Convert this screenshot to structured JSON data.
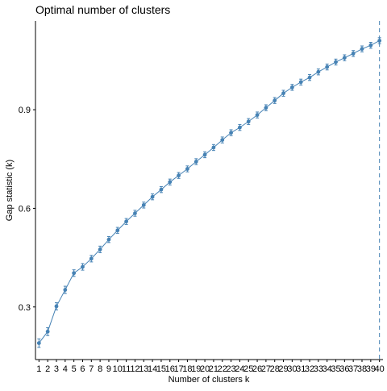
{
  "chart_data": {
    "type": "line",
    "title": "Optimal number of clusters",
    "xlabel": "Number of clusters k",
    "ylabel": "Gap statistic (k)",
    "x": [
      1,
      2,
      3,
      4,
      5,
      6,
      7,
      8,
      9,
      10,
      11,
      12,
      13,
      14,
      15,
      16,
      17,
      18,
      19,
      20,
      21,
      22,
      23,
      24,
      25,
      26,
      27,
      28,
      29,
      30,
      31,
      32,
      33,
      34,
      35,
      36,
      37,
      38,
      39,
      40
    ],
    "values": [
      0.19,
      0.225,
      0.302,
      0.352,
      0.403,
      0.422,
      0.447,
      0.475,
      0.505,
      0.533,
      0.56,
      0.585,
      0.61,
      0.635,
      0.657,
      0.68,
      0.7,
      0.72,
      0.742,
      0.763,
      0.785,
      0.808,
      0.83,
      0.846,
      0.864,
      0.884,
      0.906,
      0.928,
      0.95,
      0.968,
      0.984,
      0.998,
      1.015,
      1.03,
      1.045,
      1.058,
      1.071,
      1.085,
      1.096,
      1.11
    ],
    "errors": [
      0.013,
      0.012,
      0.011,
      0.011,
      0.01,
      0.01,
      0.01,
      0.01,
      0.009,
      0.009,
      0.009,
      0.009,
      0.009,
      0.009,
      0.009,
      0.009,
      0.009,
      0.009,
      0.009,
      0.009,
      0.009,
      0.009,
      0.009,
      0.009,
      0.009,
      0.009,
      0.009,
      0.009,
      0.009,
      0.009,
      0.009,
      0.009,
      0.009,
      0.009,
      0.009,
      0.009,
      0.009,
      0.009,
      0.009,
      0.009
    ],
    "xlim": [
      0.6,
      40.4
    ],
    "ylim": [
      0.14,
      1.17
    ],
    "yticks": [
      0.3,
      0.6,
      0.9
    ],
    "ytick_labels": [
      "0.3",
      "0.6",
      "0.9"
    ],
    "optimal_k": 40,
    "grid": false,
    "line_color": "#4682B4",
    "axis_color": "#000000"
  }
}
